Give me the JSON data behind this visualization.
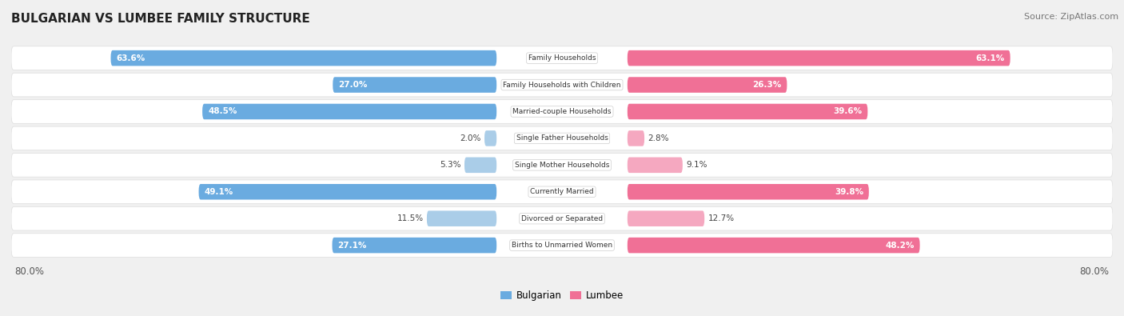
{
  "title": "BULGARIAN VS LUMBEE FAMILY STRUCTURE",
  "source": "Source: ZipAtlas.com",
  "categories": [
    "Family Households",
    "Family Households with Children",
    "Married-couple Households",
    "Single Father Households",
    "Single Mother Households",
    "Currently Married",
    "Divorced or Separated",
    "Births to Unmarried Women"
  ],
  "bulgarian_values": [
    63.6,
    27.0,
    48.5,
    2.0,
    5.3,
    49.1,
    11.5,
    27.1
  ],
  "lumbee_values": [
    63.1,
    26.3,
    39.6,
    2.8,
    9.1,
    39.8,
    12.7,
    48.2
  ],
  "bulgarian_color": "#6aabe0",
  "lumbee_color": "#f07096",
  "bulgarian_color_light": "#aacde8",
  "lumbee_color_light": "#f5a8c0",
  "max_value": 80.0,
  "bg_color": "#f0f0f0",
  "row_bg": "#f8f8f8",
  "row_border": "#dddddd"
}
